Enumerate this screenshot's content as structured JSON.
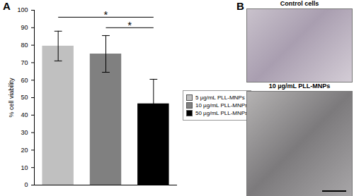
{
  "chart_data": {
    "type": "bar",
    "panel_label": "A",
    "categories": [
      "5 µg/mL PLL-MNPs",
      "10 µg/mL PLL-MNPs",
      "50 µg/mL PLL-MNPs"
    ],
    "values": [
      79.5,
      75,
      46.5
    ],
    "errors": [
      8.5,
      10.5,
      14
    ],
    "colors": [
      "#c0c0c0",
      "#808080",
      "#000000"
    ],
    "y_label": "% cell viability",
    "ylim": [
      0,
      100
    ],
    "yticks": [
      0,
      10,
      20,
      30,
      40,
      50,
      60,
      70,
      80,
      90,
      100
    ],
    "tick_labels": "y",
    "legend": "right",
    "significance": [
      {
        "from": "10 µg/mL PLL-MNPs",
        "to": "50 µg/mL PLL-MNPs",
        "label": "*"
      },
      {
        "from": "5 µg/mL PLL-MNPs",
        "to": "50 µg/mL PLL-MNPs",
        "label": "*"
      }
    ]
  },
  "panel_b": {
    "label": "B",
    "images": [
      {
        "title": "Control cells"
      },
      {
        "title": "10 µg/mL PLL-MNPs"
      }
    ]
  }
}
